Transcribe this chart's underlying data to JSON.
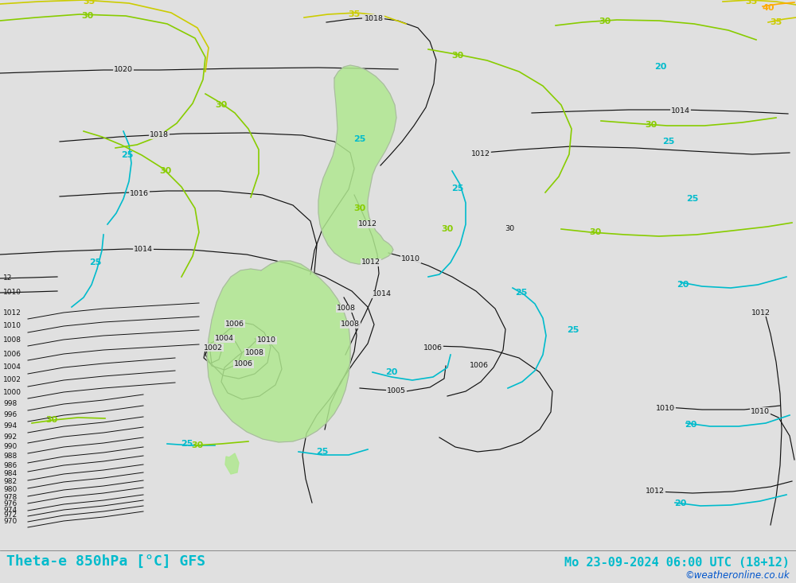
{
  "title_left": "Theta-e 850hPa [°C] GFS",
  "title_right": "Mo 23-09-2024 06:00 UTC (18+12)",
  "copyright": "©weatheronline.co.uk",
  "bg_color": "#e0e0e0",
  "land_color": "#b0e890",
  "land_border_color": "#aaaaaa",
  "isobar_color": "#111111",
  "c20": "#00bbcc",
  "c25": "#00bbcc",
  "c30": "#88cc00",
  "c35": "#cccc00",
  "c40": "#ffaa00",
  "title_color": "#00bbcc",
  "copyright_color": "#0055cc",
  "fig_width": 10.0,
  "fig_height": 7.33,
  "dpi": 100
}
